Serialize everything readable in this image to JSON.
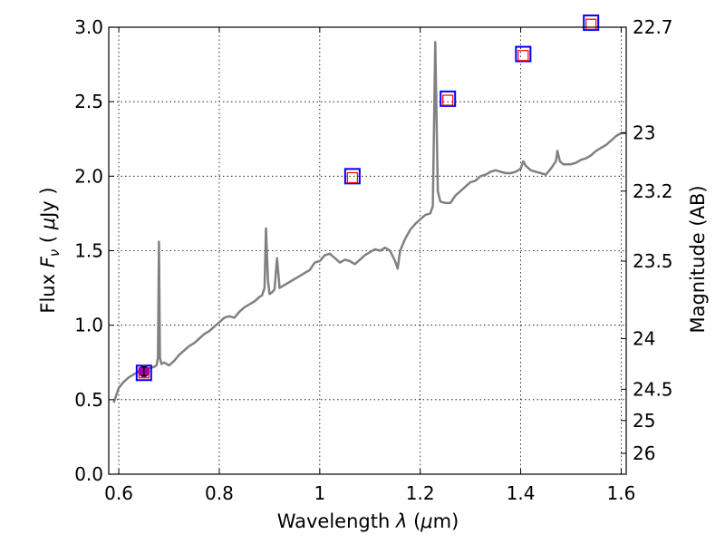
{
  "chart_data": {
    "type": "line",
    "xlabel": "Wavelength  λ (μm)",
    "ylabel": "Flux  F_ν  ( μJy )",
    "ylabel_parts": {
      "pre": "Flux  ",
      "F": "F",
      "nu": "ν",
      "mid": "  ( ",
      "mu": "μ",
      "post": "Jy )"
    },
    "xlabel_parts": {
      "pre": "Wavelength  ",
      "lambda": "λ",
      "mid": " (",
      "mu": "μ",
      "post": "m)"
    },
    "y2label": "Magnitude (AB)",
    "xlim": [
      0.58,
      1.61
    ],
    "ylim": [
      0.0,
      3.0
    ],
    "grid": true,
    "x_ticks": [
      {
        "value": 0.6,
        "label": "0.6"
      },
      {
        "value": 0.8,
        "label": "0.8"
      },
      {
        "value": 1.0,
        "label": "1"
      },
      {
        "value": 1.2,
        "label": "1.2"
      },
      {
        "value": 1.4,
        "label": "1.4"
      },
      {
        "value": 1.6,
        "label": "1.6"
      }
    ],
    "y_ticks": [
      {
        "value": 0.0,
        "label": "0.0"
      },
      {
        "value": 0.5,
        "label": "0.5"
      },
      {
        "value": 1.0,
        "label": "1.0"
      },
      {
        "value": 1.5,
        "label": "1.5"
      },
      {
        "value": 2.0,
        "label": "2.0"
      },
      {
        "value": 2.5,
        "label": "2.5"
      },
      {
        "value": 3.0,
        "label": "3.0"
      }
    ],
    "y2_ticks": [
      {
        "flux": 3.0,
        "label": "22.7"
      },
      {
        "flux": 2.29,
        "label": "23"
      },
      {
        "flux": 1.9,
        "label": "23.2"
      },
      {
        "flux": 1.43,
        "label": "23.5"
      },
      {
        "flux": 0.91,
        "label": "24"
      },
      {
        "flux": 0.57,
        "label": "24.5"
      },
      {
        "flux": 0.36,
        "label": "25"
      },
      {
        "flux": 0.14,
        "label": "26"
      }
    ],
    "series": [
      {
        "color": "#808080",
        "points": [
          [
            0.59,
            0.48
          ],
          [
            0.6,
            0.58
          ],
          [
            0.61,
            0.62
          ],
          [
            0.62,
            0.65
          ],
          [
            0.63,
            0.67
          ],
          [
            0.64,
            0.69
          ],
          [
            0.65,
            0.7
          ],
          [
            0.66,
            0.71
          ],
          [
            0.67,
            0.72
          ],
          [
            0.675,
            0.73
          ],
          [
            0.678,
            0.78
          ],
          [
            0.68,
            1.56
          ],
          [
            0.682,
            0.78
          ],
          [
            0.685,
            0.74
          ],
          [
            0.69,
            0.75
          ],
          [
            0.7,
            0.73
          ],
          [
            0.71,
            0.76
          ],
          [
            0.72,
            0.8
          ],
          [
            0.73,
            0.83
          ],
          [
            0.74,
            0.86
          ],
          [
            0.75,
            0.88
          ],
          [
            0.76,
            0.91
          ],
          [
            0.77,
            0.94
          ],
          [
            0.78,
            0.96
          ],
          [
            0.79,
            0.99
          ],
          [
            0.8,
            1.02
          ],
          [
            0.81,
            1.05
          ],
          [
            0.82,
            1.06
          ],
          [
            0.83,
            1.05
          ],
          [
            0.84,
            1.09
          ],
          [
            0.85,
            1.12
          ],
          [
            0.86,
            1.14
          ],
          [
            0.87,
            1.16
          ],
          [
            0.88,
            1.19
          ],
          [
            0.885,
            1.2
          ],
          [
            0.89,
            1.25
          ],
          [
            0.893,
            1.65
          ],
          [
            0.897,
            1.3
          ],
          [
            0.9,
            1.21
          ],
          [
            0.905,
            1.22
          ],
          [
            0.91,
            1.24
          ],
          [
            0.915,
            1.45
          ],
          [
            0.92,
            1.25
          ],
          [
            0.93,
            1.27
          ],
          [
            0.94,
            1.29
          ],
          [
            0.95,
            1.31
          ],
          [
            0.96,
            1.33
          ],
          [
            0.97,
            1.35
          ],
          [
            0.98,
            1.37
          ],
          [
            0.99,
            1.42
          ],
          [
            1.0,
            1.43
          ],
          [
            1.01,
            1.47
          ],
          [
            1.02,
            1.48
          ],
          [
            1.03,
            1.45
          ],
          [
            1.04,
            1.42
          ],
          [
            1.05,
            1.44
          ],
          [
            1.06,
            1.43
          ],
          [
            1.07,
            1.41
          ],
          [
            1.08,
            1.44
          ],
          [
            1.09,
            1.47
          ],
          [
            1.1,
            1.49
          ],
          [
            1.11,
            1.51
          ],
          [
            1.12,
            1.5
          ],
          [
            1.13,
            1.52
          ],
          [
            1.14,
            1.5
          ],
          [
            1.15,
            1.43
          ],
          [
            1.155,
            1.38
          ],
          [
            1.16,
            1.5
          ],
          [
            1.17,
            1.58
          ],
          [
            1.18,
            1.64
          ],
          [
            1.19,
            1.68
          ],
          [
            1.2,
            1.71
          ],
          [
            1.21,
            1.74
          ],
          [
            1.22,
            1.75
          ],
          [
            1.225,
            1.8
          ],
          [
            1.23,
            2.9
          ],
          [
            1.235,
            1.9
          ],
          [
            1.24,
            1.83
          ],
          [
            1.25,
            1.82
          ],
          [
            1.26,
            1.82
          ],
          [
            1.27,
            1.87
          ],
          [
            1.28,
            1.9
          ],
          [
            1.29,
            1.93
          ],
          [
            1.3,
            1.96
          ],
          [
            1.31,
            1.97
          ],
          [
            1.32,
            2.0
          ],
          [
            1.33,
            2.01
          ],
          [
            1.34,
            2.03
          ],
          [
            1.35,
            2.04
          ],
          [
            1.36,
            2.03
          ],
          [
            1.37,
            2.02
          ],
          [
            1.38,
            2.02
          ],
          [
            1.39,
            2.03
          ],
          [
            1.4,
            2.05
          ],
          [
            1.405,
            2.1
          ],
          [
            1.41,
            2.07
          ],
          [
            1.42,
            2.04
          ],
          [
            1.43,
            2.03
          ],
          [
            1.44,
            2.02
          ],
          [
            1.45,
            2.01
          ],
          [
            1.46,
            2.05
          ],
          [
            1.47,
            2.1
          ],
          [
            1.473,
            2.17
          ],
          [
            1.478,
            2.1
          ],
          [
            1.485,
            2.08
          ],
          [
            1.5,
            2.08
          ],
          [
            1.51,
            2.09
          ],
          [
            1.52,
            2.11
          ],
          [
            1.53,
            2.12
          ],
          [
            1.54,
            2.14
          ],
          [
            1.55,
            2.17
          ],
          [
            1.56,
            2.19
          ],
          [
            1.57,
            2.21
          ],
          [
            1.58,
            2.24
          ],
          [
            1.59,
            2.27
          ],
          [
            1.6,
            2.29
          ],
          [
            1.61,
            2.29
          ]
        ]
      }
    ],
    "photometry_blue_squares": [
      {
        "x": 0.65,
        "y": 0.68
      },
      {
        "x": 1.065,
        "y": 2.0
      },
      {
        "x": 1.255,
        "y": 2.52
      },
      {
        "x": 1.405,
        "y": 2.82
      },
      {
        "x": 1.54,
        "y": 3.03
      }
    ],
    "photometry_red_squares": [
      {
        "x": 0.65,
        "y": 0.68
      },
      {
        "x": 1.065,
        "y": 1.99
      },
      {
        "x": 1.255,
        "y": 2.51
      },
      {
        "x": 1.405,
        "y": 2.81
      },
      {
        "x": 1.54,
        "y": 3.02
      }
    ],
    "measured_point": {
      "x": 0.65,
      "y": 0.69,
      "yerr": 0.03,
      "color": "#a000a0"
    },
    "colors": {
      "model_line": "#808080",
      "blue_square": "#0000ff",
      "red_square": "#ff0000",
      "measured": "#a000a0"
    }
  }
}
